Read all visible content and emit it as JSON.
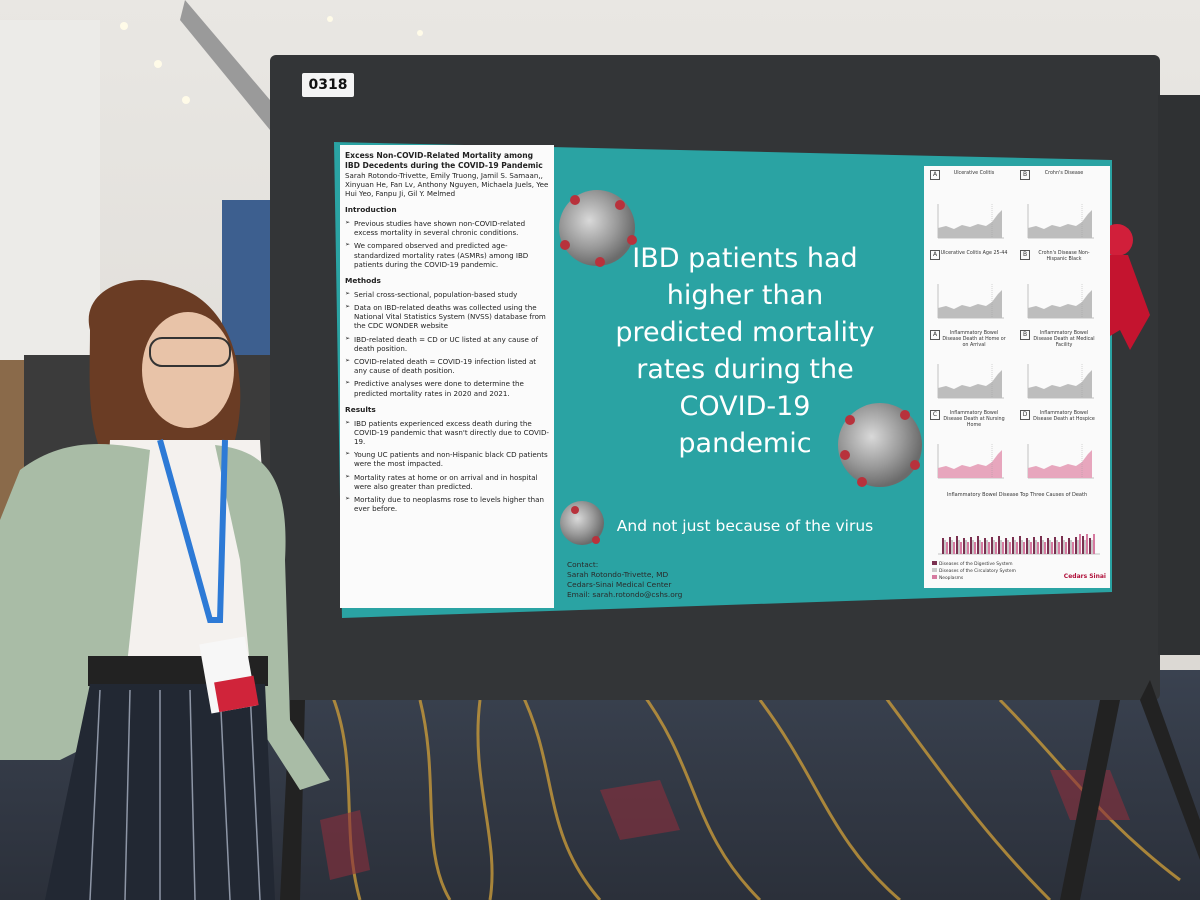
{
  "board_number": "0318",
  "poster": {
    "title": "Excess Non-COVID-Related Mortality among IBD Decedents during the COVID-19 Pandemic",
    "authors": "Sarah Rotondo-Trivette, Emily Truong, Jamil S. Samaan,, Xinyuan He, Fan Lv, Anthony Nguyen, Michaela Juels, Yee Hui Yeo, Fanpu Ji, Gil Y. Melmed",
    "sections": [
      {
        "heading": "Introduction",
        "items": [
          "Previous studies have shown non-COVID-related excess mortality in several chronic conditions.",
          "We compared observed and predicted age-standardized mortality rates (ASMRs) among IBD patients during the COVID-19 pandemic."
        ]
      },
      {
        "heading": "Methods",
        "items": [
          "Serial cross-sectional, population-based study",
          "Data on IBD-related deaths was collected using the National Vital Statistics System (NVSS) database from the CDC WONDER website",
          "IBD-related death = CD or UC listed at any cause of death position.",
          "COVID-related death = COVID-19 infection listed at any cause of death position.",
          "Predictive analyses were done to determine the predicted mortality rates in 2020 and 2021."
        ]
      },
      {
        "heading": "Results",
        "items": [
          "IBD patients experienced excess death during the COVID-19 pandemic that wasn't directly due to COVID-19.",
          "Young UC patients and non-Hispanic black CD patients were the most impacted.",
          "Mortality rates at home or on arrival and in hospital were also greater than predicted.",
          "Mortality due to neoplasms rose to levels higher than ever before."
        ]
      }
    ],
    "headline": [
      "IBD patients had",
      "higher than",
      "predicted mortality",
      "rates during the",
      "COVID-19",
      "pandemic"
    ],
    "subline": "And not just because of the virus",
    "contact": [
      "Contact:",
      "Sarah Rotondo-Trivette, MD",
      "Cedars-Sinai Medical Center",
      "Email: sarah.rotondo@cshs.org"
    ],
    "figures": [
      {
        "letter": "A",
        "title": "Ulcerative Colitis"
      },
      {
        "letter": "B",
        "title": "Crohn's Disease"
      },
      {
        "letter": "A",
        "title": "Ulcerative Colitis Age 25-44"
      },
      {
        "letter": "B",
        "title": "Crohn's Disease Non-Hispanic Black"
      },
      {
        "letter": "A",
        "title": "Inflammatory Bowel Disease Death at Home or on Arrival"
      },
      {
        "letter": "B",
        "title": "Inflammatory Bowel Disease Death at Medical Facility"
      },
      {
        "letter": "C",
        "title": "Inflammatory Bowel Disease Death at Nursing Home"
      },
      {
        "letter": "D",
        "title": "Inflammatory Bowel Disease Death at Hospice"
      }
    ],
    "bottom_figure": {
      "title": "Inflammatory Bowel Disease Top Three Causes of Death",
      "legend": [
        "Diseases of the Digestive System",
        "Diseases of the Circulatory System",
        "Neoplasms"
      ]
    },
    "logo": "Cedars Sinai"
  }
}
